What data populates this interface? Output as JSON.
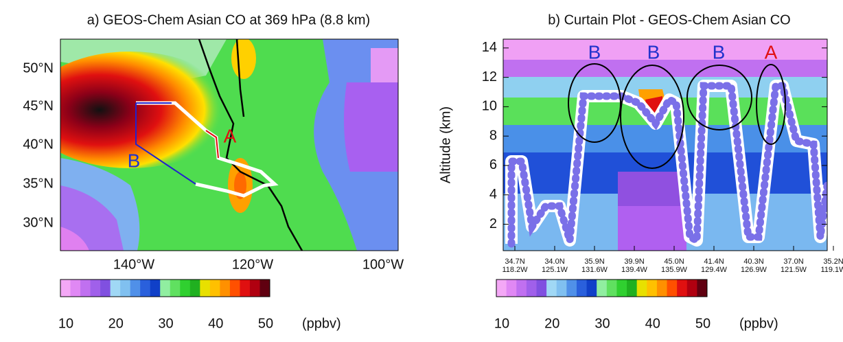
{
  "map_panel": {
    "title": "a)  GEOS-Chem Asian CO at 369 hPa (8.8 km)",
    "lat_labels": [
      "50°N",
      "45°N",
      "40°N",
      "35°N",
      "30°N"
    ],
    "lon_labels": [
      "140°W",
      "120°W",
      "100°W"
    ],
    "annotations": [
      "A",
      "B"
    ],
    "colorbar": {
      "lim": [
        10,
        50
      ],
      "ticks": [
        10,
        20,
        30,
        40,
        50
      ],
      "unit": "(ppbv)"
    }
  },
  "curtain_panel": {
    "title": "b) Curtain Plot - GEOS-Chem Asian CO",
    "y_label": "Altitude (km)",
    "ylim": [
      0.2,
      14.6
    ],
    "yticks": [
      2,
      4,
      6,
      8,
      10,
      12,
      14
    ],
    "x_labels": [
      [
        "34.7N",
        "118.2W"
      ],
      [
        "34.0N",
        "125.1W"
      ],
      [
        "35.9N",
        "131.6W"
      ],
      [
        "39.9N",
        "139.4W"
      ],
      [
        "45.0N",
        "135.9W"
      ],
      [
        "41.4N",
        "129.4W"
      ],
      [
        "40.3N",
        "126.9W"
      ],
      [
        "37.0N",
        "121.5W"
      ],
      [
        "35.2N",
        "119.1W"
      ]
    ],
    "annotations": [
      "B",
      "B",
      "B",
      "A"
    ],
    "colorbar": {
      "lim": [
        10,
        50
      ],
      "ticks": [
        10,
        20,
        30,
        40,
        50
      ],
      "unit": "(ppbv)"
    }
  }
}
